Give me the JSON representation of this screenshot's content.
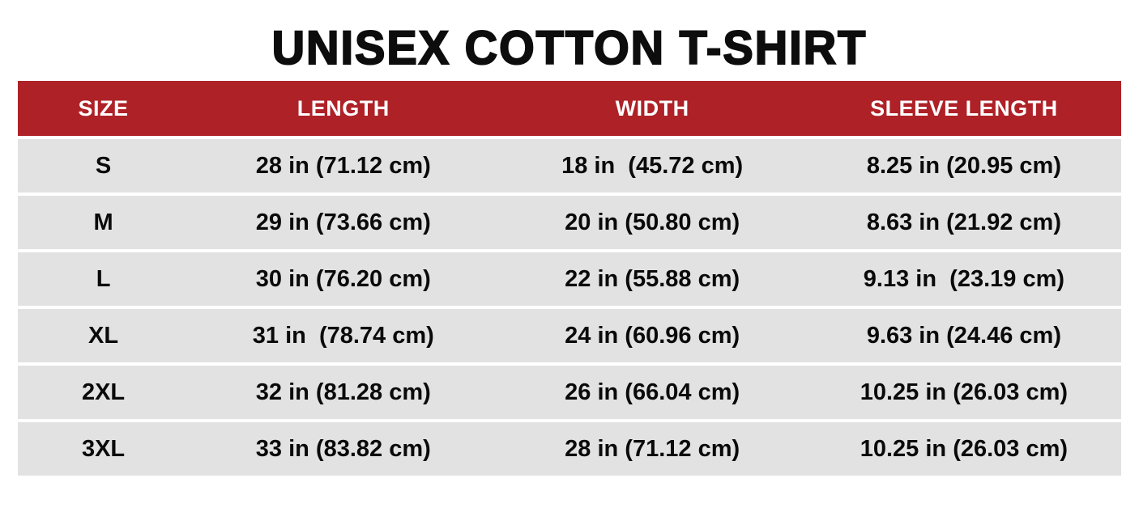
{
  "title": "UNISEX COTTON T-SHIRT",
  "colors": {
    "header_bg": "#ae2127",
    "header_text": "#ffffff",
    "row_bg": "#e2e2e2",
    "cell_text": "#0a0a0a",
    "page_bg": "#ffffff"
  },
  "table": {
    "headers": [
      "SIZE",
      "LENGTH",
      "WIDTH",
      "SLEEVE LENGTH"
    ],
    "rows": [
      {
        "size": "S",
        "length": "28 in (71.12 cm)",
        "width": "18 in  (45.72 cm)",
        "sleeve": "8.25 in (20.95 cm)"
      },
      {
        "size": "M",
        "length": "29 in (73.66 cm)",
        "width": "20 in (50.80 cm)",
        "sleeve": "8.63 in (21.92 cm)"
      },
      {
        "size": "L",
        "length": "30 in (76.20 cm)",
        "width": "22 in (55.88 cm)",
        "sleeve": "9.13 in  (23.19 cm)"
      },
      {
        "size": "XL",
        "length": "31 in  (78.74 cm)",
        "width": "24 in (60.96 cm)",
        "sleeve": "9.63 in (24.46 cm)"
      },
      {
        "size": "2XL",
        "length": "32 in (81.28 cm)",
        "width": "26 in (66.04 cm)",
        "sleeve": "10.25 in (26.03 cm)"
      },
      {
        "size": "3XL",
        "length": "33 in (83.82 cm)",
        "width": "28 in (71.12 cm)",
        "sleeve": "10.25 in (26.03 cm)"
      }
    ]
  },
  "chart_data": {
    "type": "table",
    "title": "UNISEX COTTON T-SHIRT",
    "columns": [
      "SIZE",
      "LENGTH",
      "WIDTH",
      "SLEEVE LENGTH"
    ],
    "rows": [
      [
        "S",
        "28 in (71.12 cm)",
        "18 in (45.72 cm)",
        "8.25 in (20.95 cm)"
      ],
      [
        "M",
        "29 in (73.66 cm)",
        "20 in (50.80 cm)",
        "8.63 in (21.92 cm)"
      ],
      [
        "L",
        "30 in (76.20 cm)",
        "22 in (55.88 cm)",
        "9.13 in (23.19 cm)"
      ],
      [
        "XL",
        "31 in (78.74 cm)",
        "24 in (60.96 cm)",
        "9.63 in (24.46 cm)"
      ],
      [
        "2XL",
        "32 in (81.28 cm)",
        "26 in (66.04 cm)",
        "10.25 in (26.03 cm)"
      ],
      [
        "3XL",
        "33 in (83.82 cm)",
        "28 in (71.12 cm)",
        "10.25 in (26.03 cm)"
      ]
    ],
    "values_in": {
      "length": [
        28,
        29,
        30,
        31,
        32,
        33
      ],
      "width": [
        18,
        20,
        22,
        24,
        26,
        28
      ],
      "sleeve": [
        8.25,
        8.63,
        9.13,
        9.63,
        10.25,
        10.25
      ]
    },
    "values_cm": {
      "length": [
        71.12,
        73.66,
        76.2,
        78.74,
        81.28,
        83.82
      ],
      "width": [
        45.72,
        50.8,
        55.88,
        60.96,
        66.04,
        71.12
      ],
      "sleeve": [
        20.95,
        21.92,
        23.19,
        24.46,
        26.03,
        26.03
      ]
    }
  }
}
